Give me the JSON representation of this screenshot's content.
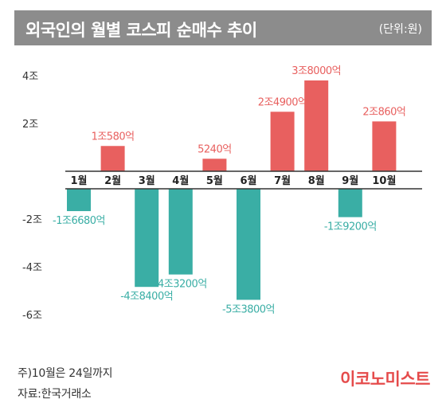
{
  "header": {
    "title": "외국인의 월별 코스피 순매수 추이",
    "unit": "(단위:원)"
  },
  "footer": {
    "note": "주)10월은 24일까지",
    "source": "자료:한국거래소",
    "logo": "이코노미스트"
  },
  "colors": {
    "positive": "#e8605f",
    "negative": "#3aaea5",
    "axis": "#333333",
    "header_bg": "#8c8c8c",
    "logo": "#e54b4b"
  },
  "chart_data": {
    "type": "bar",
    "title": "외국인의 월별 코스피 순매수 추이",
    "unit": "(단위:원)",
    "categories": [
      "1월",
      "2월",
      "3월",
      "4월",
      "5월",
      "6월",
      "7월",
      "8월",
      "9월",
      "10월"
    ],
    "values": [
      -1.668,
      1.058,
      -4.84,
      -4.32,
      0.524,
      -5.38,
      2.49,
      3.8,
      -1.92,
      2.086
    ],
    "value_unit": "조원",
    "data_labels": [
      "-1조6680억",
      "1조580억",
      "-4조8400억",
      "-4조3200억",
      "5240억",
      "-5조3800억",
      "2조4900억",
      "3조8000억",
      "-1조9200억",
      "2조860억"
    ],
    "y_ticks": [
      4,
      2,
      -2,
      -4,
      -6
    ],
    "y_tick_labels": [
      "4조",
      "2조",
      "-2조",
      "-4조",
      "-6조"
    ],
    "ylim": [
      -6,
      4
    ],
    "grid": false,
    "legend": "none"
  }
}
